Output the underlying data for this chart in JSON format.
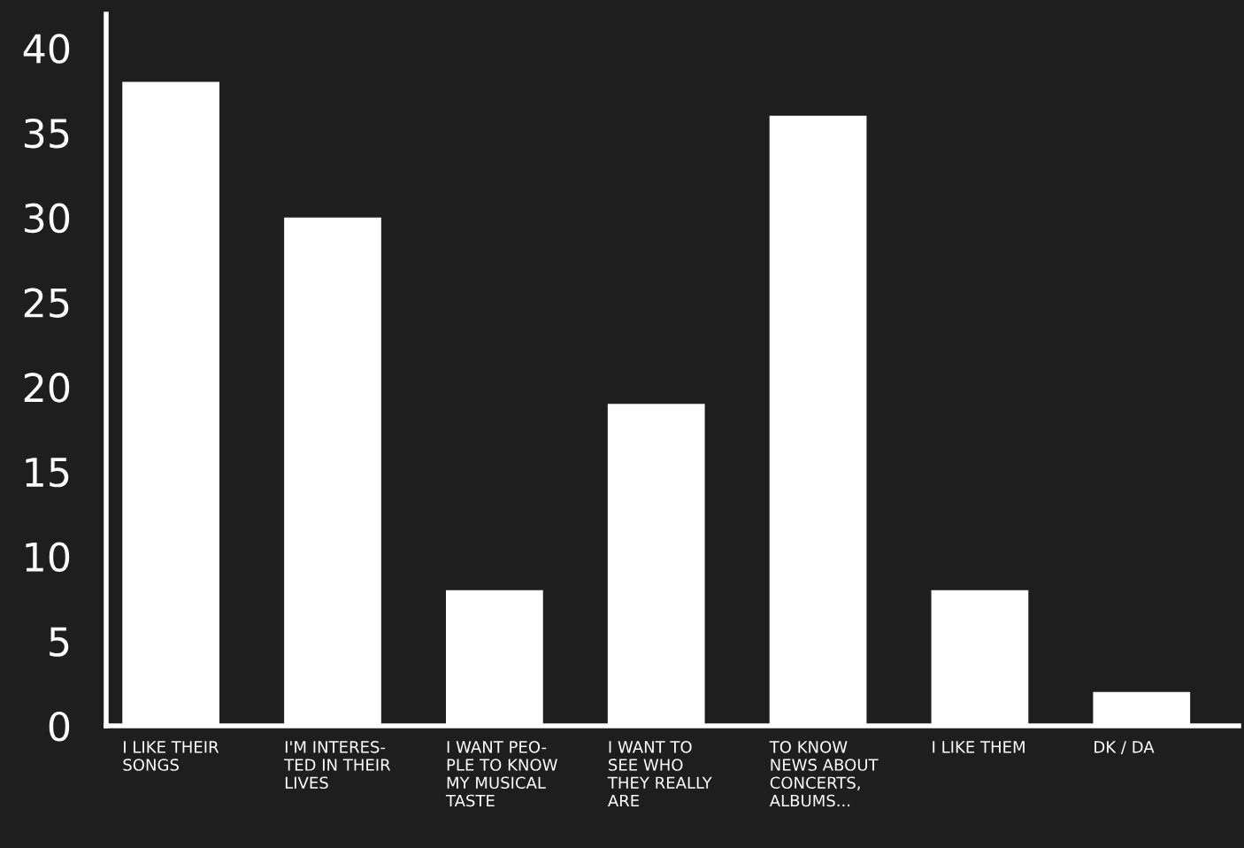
{
  "chart_data": {
    "type": "bar",
    "categories": [
      "I LIKE THEIR\nSONGS",
      "I'M INTERES-\nTED IN THEIR\nLIVES",
      "I WANT PEO-\nPLE TO KNOW\nMY MUSICAL\nTASTE",
      "I WANT TO\nSEE WHO\nTHEY REALLY\nARE",
      "TO KNOW\nNEWS ABOUT\nCONCERTS,\nALBUMS...",
      "I LIKE THEM",
      "DK / DA"
    ],
    "values": [
      38,
      30,
      8,
      19,
      36,
      8,
      2
    ],
    "color": "#ffffff",
    "ylim": [
      0,
      42
    ],
    "yticks": [
      0,
      5,
      10,
      15,
      20,
      25,
      30,
      35,
      40
    ],
    "grid": false
  }
}
